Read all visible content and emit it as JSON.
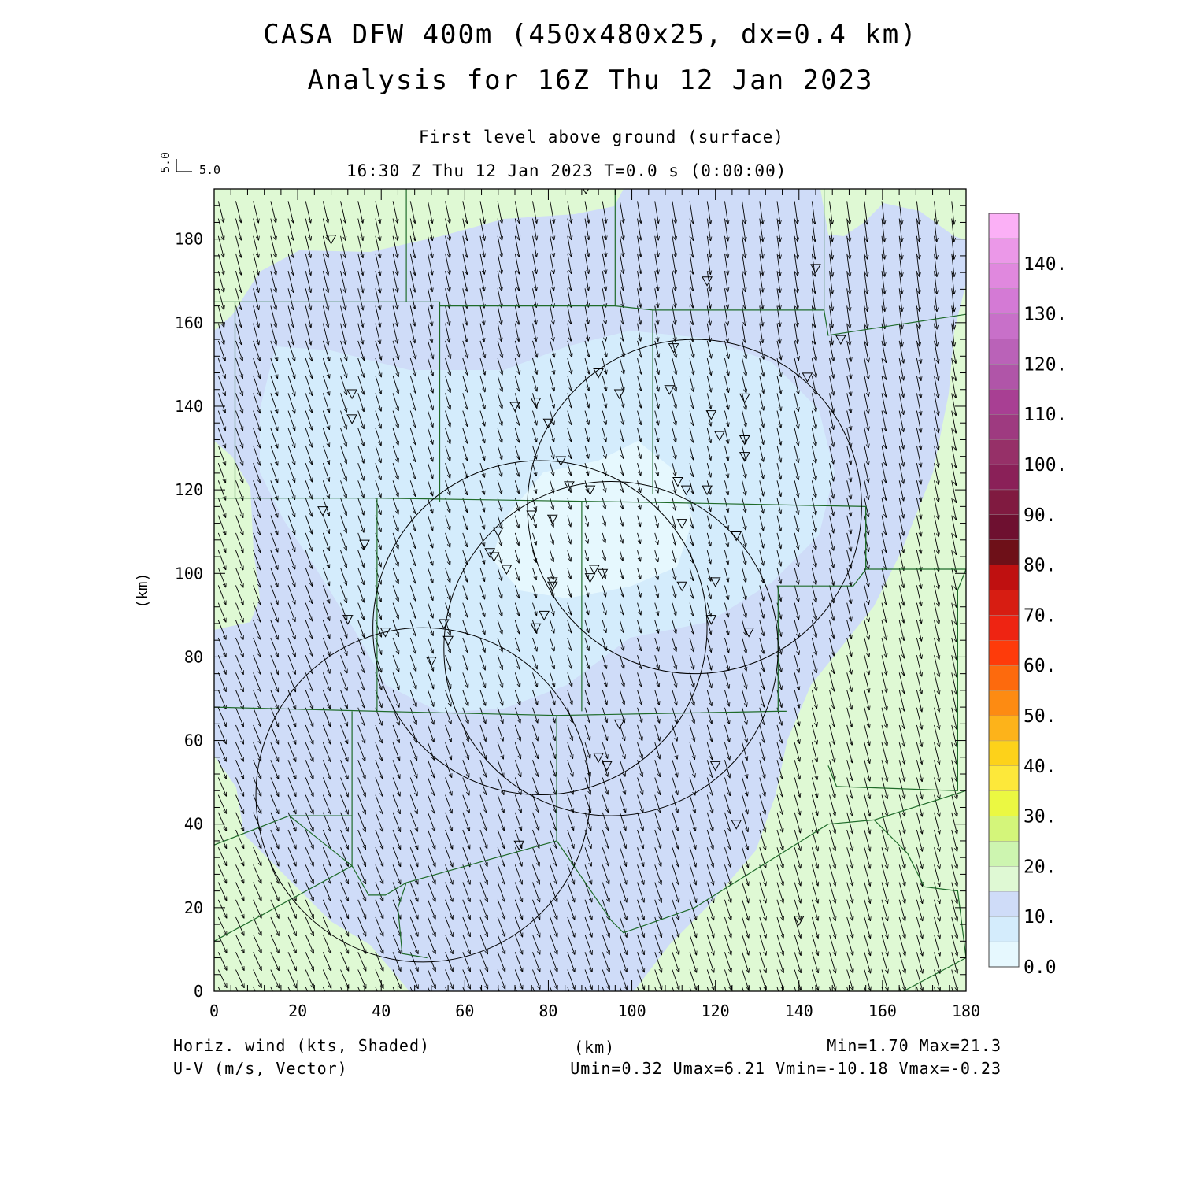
{
  "header": {
    "title_line1": "CASA DFW 400m (450x480x25, dx=0.4 km)",
    "title_line2": "Analysis for 16Z Thu 12 Jan 2023",
    "level": "First level above ground (surface)",
    "time": "16:30 Z Thu 12 Jan 2023   T=0.0 s (0:00:00)",
    "ref_vector_u": "5.0",
    "ref_vector_v": "5.0"
  },
  "footer": {
    "field1": "Horiz. wind (kts, Shaded)",
    "field2": "U-V (m/s, Vector)",
    "minmax": "Min=1.70 Max=21.3",
    "uv_range": "Umin=0.32 Umax=6.21 Vmin=-10.18 Vmax=-0.23"
  },
  "chart_data": {
    "type": "heatmap",
    "xlabel": "(km)",
    "ylabel": "(km)",
    "xlim": [
      0,
      180
    ],
    "ylim": [
      0,
      192
    ],
    "x_ticks": [
      0,
      20,
      40,
      60,
      80,
      100,
      120,
      140,
      160,
      180
    ],
    "y_ticks": [
      0,
      20,
      40,
      60,
      80,
      100,
      120,
      140,
      160,
      180
    ],
    "field": "Horiz. wind (kts)",
    "vector_field": "U-V (m/s)",
    "min": 1.7,
    "max": 21.3,
    "umin": 0.32,
    "umax": 6.21,
    "vmin": -10.18,
    "vmax": -0.23,
    "colorbar": {
      "levels": [
        0,
        5,
        10,
        15,
        20,
        25,
        30,
        35,
        40,
        45,
        50,
        55,
        60,
        65,
        70,
        75,
        80,
        85,
        90,
        95,
        100,
        105,
        110,
        115,
        120,
        125,
        130,
        135,
        140,
        145
      ],
      "labels": [
        "0.0",
        "10.",
        "20.",
        "30.",
        "40.",
        "50.",
        "60.",
        "70.",
        "80.",
        "90.",
        "100.",
        "110.",
        "120.",
        "130.",
        "140."
      ],
      "colors": [
        "#e6f8fe",
        "#d4ecfc",
        "#cfdcf8",
        "#dff9d4",
        "#cdf5b0",
        "#d4f57a",
        "#ebf842",
        "#fde83a",
        "#fdd21a",
        "#fdb31a",
        "#fd8b12",
        "#fd6a0d",
        "#fe3b0a",
        "#ee2412",
        "#d71d12",
        "#bf1010",
        "#6e1018",
        "#6e1030",
        "#801a40",
        "#8a2058",
        "#963068",
        "#9e3a80",
        "#a83f93",
        "#b055a8",
        "#ba62b8",
        "#c870c9",
        "#d47ad5",
        "#e088de",
        "#eb98e8",
        "#fbb0f6"
      ]
    },
    "radar_range_rings": [
      {
        "center_x_km": 95,
        "center_y_km": 82,
        "radius_km": 40
      },
      {
        "center_x_km": 115,
        "center_y_km": 116,
        "radius_km": 40
      },
      {
        "center_x_km": 78,
        "center_y_km": 87,
        "radius_km": 40
      },
      {
        "center_x_km": 50,
        "center_y_km": 47,
        "radius_km": 40
      }
    ],
    "station_markers_km": [
      [
        28,
        180
      ],
      [
        89,
        192
      ],
      [
        118,
        170
      ],
      [
        144,
        173
      ],
      [
        150,
        156
      ],
      [
        142,
        147
      ],
      [
        127,
        142
      ],
      [
        110,
        154
      ],
      [
        109,
        144
      ],
      [
        119,
        138
      ],
      [
        121,
        133
      ],
      [
        127,
        132
      ],
      [
        127,
        128
      ],
      [
        33,
        143
      ],
      [
        33,
        137
      ],
      [
        72,
        140
      ],
      [
        77,
        141
      ],
      [
        80,
        136
      ],
      [
        92,
        148
      ],
      [
        97,
        143
      ],
      [
        83,
        127
      ],
      [
        85,
        121
      ],
      [
        90,
        120
      ],
      [
        111,
        122
      ],
      [
        113,
        120
      ],
      [
        118,
        120
      ],
      [
        76,
        114
      ],
      [
        81,
        113
      ],
      [
        68,
        110
      ],
      [
        112,
        112
      ],
      [
        125,
        109
      ],
      [
        26,
        115
      ],
      [
        36,
        107
      ],
      [
        66,
        105
      ],
      [
        67,
        104
      ],
      [
        70,
        101
      ],
      [
        91,
        101
      ],
      [
        93,
        100
      ],
      [
        90,
        99
      ],
      [
        81,
        98
      ],
      [
        81,
        97
      ],
      [
        112,
        97
      ],
      [
        120,
        98
      ],
      [
        32,
        89
      ],
      [
        79,
        90
      ],
      [
        77,
        87
      ],
      [
        41,
        86
      ],
      [
        55,
        88
      ],
      [
        56,
        84
      ],
      [
        52,
        79
      ],
      [
        128,
        86
      ],
      [
        119,
        89
      ],
      [
        97,
        64
      ],
      [
        92,
        56
      ],
      [
        94,
        54
      ],
      [
        120,
        54
      ],
      [
        125,
        40
      ],
      [
        73,
        35
      ],
      [
        140,
        17
      ]
    ],
    "county_boundaries_km": [
      [
        [
          0,
          165
        ],
        [
          46,
          165
        ],
        [
          46,
          192
        ]
      ],
      [
        [
          46,
          165
        ],
        [
          54,
          165
        ],
        [
          54,
          164
        ],
        [
          96,
          164
        ],
        [
          96,
          192
        ]
      ],
      [
        [
          54,
          164
        ],
        [
          54,
          117
        ]
      ],
      [
        [
          96,
          164
        ],
        [
          105,
          163
        ],
        [
          146,
          163
        ],
        [
          146,
          192
        ]
      ],
      [
        [
          146,
          163
        ],
        [
          147,
          157
        ],
        [
          180,
          162
        ]
      ],
      [
        [
          105,
          163
        ],
        [
          105,
          119
        ]
      ],
      [
        [
          5,
          165
        ],
        [
          5,
          118
        ]
      ],
      [
        [
          0,
          118
        ],
        [
          39,
          118
        ],
        [
          39,
          67
        ],
        [
          0,
          68
        ]
      ],
      [
        [
          39,
          118
        ],
        [
          105,
          117
        ],
        [
          156,
          116
        ],
        [
          156,
          101
        ],
        [
          180,
          101
        ]
      ],
      [
        [
          156,
          116
        ],
        [
          156,
          101
        ],
        [
          153,
          97
        ],
        [
          135,
          97
        ],
        [
          135,
          67
        ]
      ],
      [
        [
          88,
          117
        ],
        [
          88,
          67
        ]
      ],
      [
        [
          39,
          67
        ],
        [
          82,
          66
        ],
        [
          82,
          36
        ]
      ],
      [
        [
          33,
          67
        ],
        [
          33,
          30
        ],
        [
          18,
          42
        ],
        [
          0,
          35
        ]
      ],
      [
        [
          18,
          42
        ],
        [
          33,
          42
        ]
      ],
      [
        [
          33,
          30
        ],
        [
          0,
          12
        ]
      ],
      [
        [
          82,
          66
        ],
        [
          135,
          67
        ],
        [
          137,
          67
        ]
      ],
      [
        [
          33,
          30
        ],
        [
          37,
          23
        ],
        [
          41,
          23
        ],
        [
          46,
          26
        ],
        [
          82,
          36
        ]
      ],
      [
        [
          46,
          26
        ],
        [
          44,
          20
        ],
        [
          45,
          9
        ],
        [
          51,
          8
        ]
      ],
      [
        [
          82,
          36
        ],
        [
          95,
          17
        ],
        [
          98,
          14
        ],
        [
          115,
          20
        ],
        [
          147,
          40
        ],
        [
          158,
          41
        ],
        [
          180,
          48
        ]
      ],
      [
        [
          149,
          49
        ],
        [
          178,
          48
        ],
        [
          178,
          96
        ],
        [
          180,
          101
        ]
      ],
      [
        [
          149,
          49
        ],
        [
          147,
          54
        ]
      ],
      [
        [
          158,
          41
        ],
        [
          166,
          33
        ],
        [
          170,
          25
        ],
        [
          178,
          24
        ],
        [
          180,
          8
        ],
        [
          165,
          0
        ]
      ]
    ]
  }
}
